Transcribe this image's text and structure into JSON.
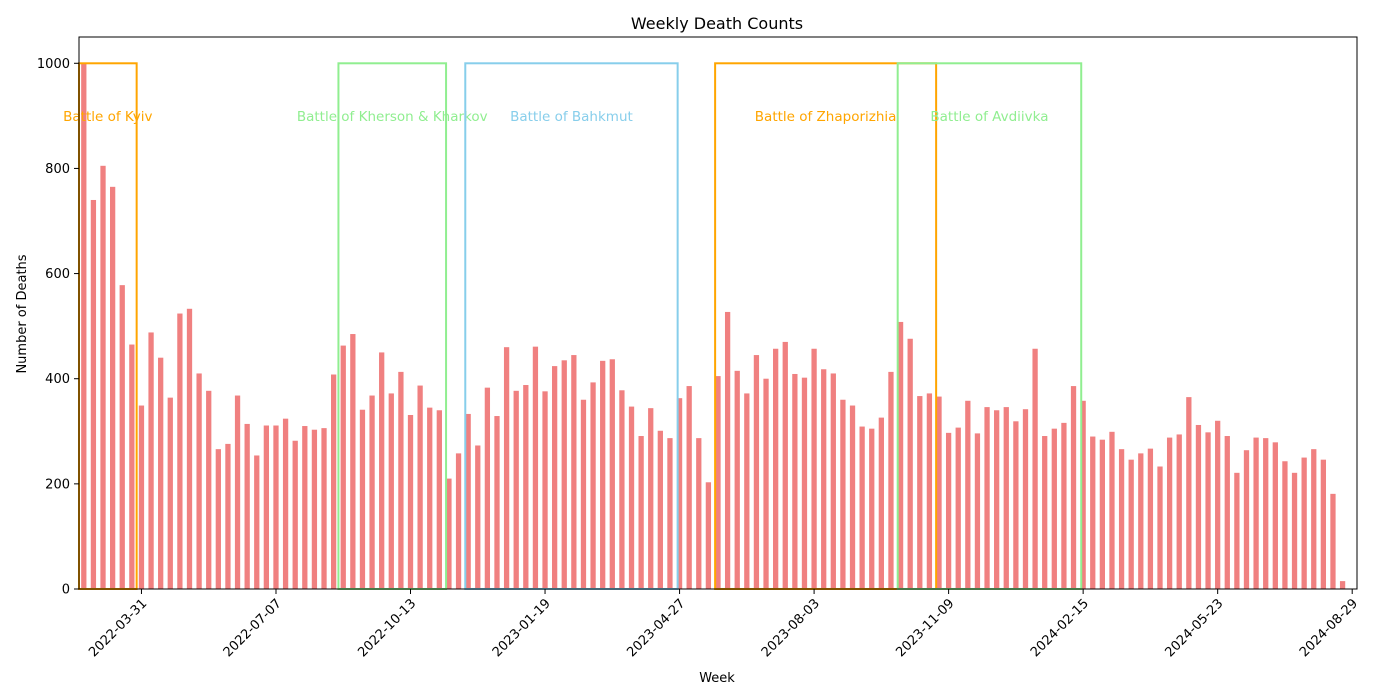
{
  "chart_data": {
    "type": "bar",
    "title": "Weekly Death Counts",
    "xlabel": "Week",
    "ylabel": "Number of Deaths",
    "ylim": [
      0,
      1050
    ],
    "y_ticks": [
      0,
      200,
      400,
      600,
      800,
      1000
    ],
    "x_tick_labels": [
      "2022-03-31",
      "2022-07-07",
      "2022-10-13",
      "2023-01-19",
      "2023-04-27",
      "2023-08-03",
      "2023-11-09",
      "2024-02-15",
      "2024-05-23",
      "2024-08-29"
    ],
    "x_tick_week_index": [
      6,
      20,
      34,
      48,
      62,
      76,
      90,
      104,
      118,
      132
    ],
    "bar_color": "#f08080",
    "values": [
      1000,
      740,
      805,
      765,
      578,
      465,
      349,
      488,
      440,
      364,
      524,
      533,
      410,
      377,
      266,
      276,
      368,
      314,
      254,
      311,
      311,
      324,
      282,
      310,
      303,
      306,
      408,
      463,
      485,
      341,
      368,
      450,
      372,
      413,
      331,
      387,
      345,
      340,
      210,
      258,
      333,
      273,
      383,
      329,
      460,
      377,
      388,
      461,
      376,
      424,
      435,
      445,
      360,
      393,
      434,
      437,
      378,
      347,
      291,
      344,
      301,
      287,
      363,
      386,
      287,
      203,
      405,
      527,
      415,
      372,
      445,
      400,
      457,
      470,
      409,
      402,
      457,
      418,
      410,
      360,
      349,
      309,
      305,
      326,
      413,
      508,
      476,
      367,
      372,
      366,
      297,
      307,
      358,
      296,
      346,
      340,
      346,
      319,
      342,
      457,
      291,
      305,
      316,
      386,
      358,
      290,
      284,
      299,
      266,
      246,
      258,
      267,
      233,
      288,
      294,
      365,
      312,
      298,
      320,
      291,
      221,
      264,
      288,
      287,
      279,
      243,
      221,
      250,
      266,
      246,
      181,
      15
    ],
    "annotations": [
      {
        "label": "Battle of Kyiv",
        "start_week": 0,
        "end_week": 5.5,
        "height": 1000,
        "color": "#ffa500"
      },
      {
        "label": "Battle of Kherson & Kharkov",
        "start_week": 26.5,
        "end_week": 37.7,
        "height": 1000,
        "color": "#90ee90"
      },
      {
        "label": "Battle of Bahkmut",
        "start_week": 39.7,
        "end_week": 61.8,
        "height": 1000,
        "color": "#87ceeb"
      },
      {
        "label": "Battle of Zhaporizhia",
        "start_week": 65.7,
        "end_week": 88.7,
        "height": 1000,
        "color": "#ffa500"
      },
      {
        "label": "Battle of Avdiivka",
        "start_week": 84.7,
        "end_week": 103.8,
        "height": 1000,
        "color": "#90ee90"
      }
    ],
    "grid": false,
    "legend": "none"
  }
}
